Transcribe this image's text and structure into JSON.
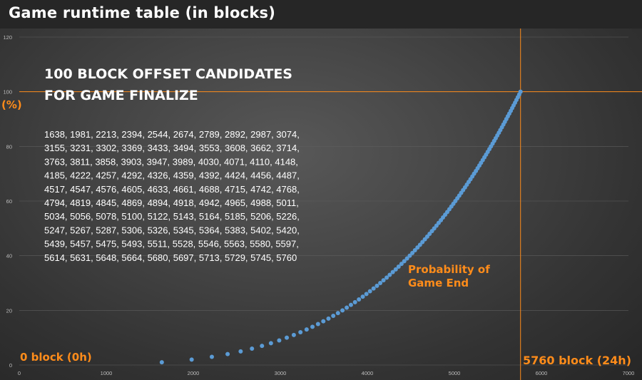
{
  "colors": {
    "accent": "#ff8c1a",
    "series": "#5b9bd5",
    "text": "#ffffff",
    "grid": "#5e5e5e"
  },
  "chart_data": {
    "type": "scatter",
    "title": "Game runtime table (in blocks)",
    "xlabel": "",
    "ylabel": "(%)",
    "xlim": [
      0,
      7000
    ],
    "ylim": [
      0,
      120
    ],
    "x_ticks": [
      "0",
      "1000",
      "2000",
      "3000",
      "4000",
      "5000",
      "6000",
      "7000"
    ],
    "y_ticks": [
      "0",
      "20",
      "40",
      "60",
      "80",
      "100",
      "120"
    ],
    "grid": true,
    "reference_lines": {
      "x": 5760,
      "y": 100
    },
    "annotations": {
      "heading_line1": "100 BLOCK OFFSET CANDIDATES",
      "heading_line2": "FOR GAME FINALIZE",
      "start_label": "0 block (0h)",
      "end_label": "5760 block (24h)",
      "curve_label_line1": "Probability of",
      "curve_label_line2": "Game End",
      "candidate_lines": [
        "1638, 1981, 2213, 2394, 2544, 2674, 2789, 2892, 2987, 3074,",
        "3155, 3231, 3302, 3369, 3433, 3494, 3553, 3608, 3662, 3714,",
        "3763, 3811, 3858, 3903, 3947, 3989, 4030, 4071, 4110, 4148,",
        "4185, 4222, 4257, 4292, 4326, 4359, 4392, 4424, 4456, 4487,",
        "4517, 4547, 4576, 4605, 4633, 4661, 4688, 4715, 4742, 4768,",
        "4794, 4819, 4845, 4869, 4894, 4918, 4942, 4965, 4988, 5011,",
        "5034, 5056, 5078, 5100, 5122, 5143, 5164, 5185, 5206, 5226,",
        "5247, 5267, 5287, 5306, 5326, 5345, 5364, 5383, 5402, 5420,",
        "5439, 5457, 5475, 5493, 5511, 5528, 5546, 5563, 5580, 5597,",
        "5614, 5631, 5648, 5664, 5680, 5697, 5713, 5729, 5745, 5760"
      ]
    },
    "series": [
      {
        "x": [
          1638,
          1981,
          2213,
          2394,
          2544,
          2674,
          2789,
          2892,
          2987,
          3074,
          3155,
          3231,
          3302,
          3369,
          3433,
          3494,
          3553,
          3608,
          3662,
          3714,
          3763,
          3811,
          3858,
          3903,
          3947,
          3989,
          4030,
          4071,
          4110,
          4148,
          4185,
          4222,
          4257,
          4292,
          4326,
          4359,
          4392,
          4424,
          4456,
          4487,
          4517,
          4547,
          4576,
          4605,
          4633,
          4661,
          4688,
          4715,
          4742,
          4768,
          4794,
          4819,
          4845,
          4869,
          4894,
          4918,
          4942,
          4965,
          4988,
          5011,
          5034,
          5056,
          5078,
          5100,
          5122,
          5143,
          5164,
          5185,
          5206,
          5226,
          5247,
          5267,
          5287,
          5306,
          5326,
          5345,
          5364,
          5383,
          5402,
          5420,
          5439,
          5457,
          5475,
          5493,
          5511,
          5528,
          5546,
          5563,
          5580,
          5597,
          5614,
          5631,
          5648,
          5664,
          5680,
          5697,
          5713,
          5729,
          5745,
          5760
        ],
        "y": [
          1,
          2,
          3,
          4,
          5,
          6,
          7,
          8,
          9,
          10,
          11,
          12,
          13,
          14,
          15,
          16,
          17,
          18,
          19,
          20,
          21,
          22,
          23,
          24,
          25,
          26,
          27,
          28,
          29,
          30,
          31,
          32,
          33,
          34,
          35,
          36,
          37,
          38,
          39,
          40,
          41,
          42,
          43,
          44,
          45,
          46,
          47,
          48,
          49,
          50,
          51,
          52,
          53,
          54,
          55,
          56,
          57,
          58,
          59,
          60,
          61,
          62,
          63,
          64,
          65,
          66,
          67,
          68,
          69,
          70,
          71,
          72,
          73,
          74,
          75,
          76,
          77,
          78,
          79,
          80,
          81,
          82,
          83,
          84,
          85,
          86,
          87,
          88,
          89,
          90,
          91,
          92,
          93,
          94,
          95,
          96,
          97,
          98,
          99,
          100
        ]
      }
    ]
  }
}
